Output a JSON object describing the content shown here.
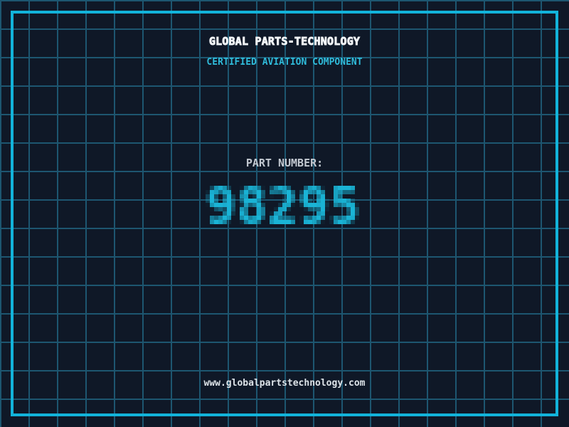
{
  "header": {
    "title": "GLOBAL PARTS-TECHNOLOGY",
    "subtitle": "CERTIFIED AVIATION COMPONENT"
  },
  "part": {
    "label": "PART NUMBER:",
    "number": "98295"
  },
  "footer": {
    "website": "www.globalpartstechnology.com"
  },
  "colors": {
    "background": "#0f1827",
    "grid_line": "#1d5670",
    "frame": "#12b3da",
    "title_text": "#f2f5f7",
    "subtitle_text": "#2fbbda",
    "part_label_text": "#c3c9d1",
    "part_number_text": "#1ab4d6",
    "website_text": "#dde3e8"
  }
}
